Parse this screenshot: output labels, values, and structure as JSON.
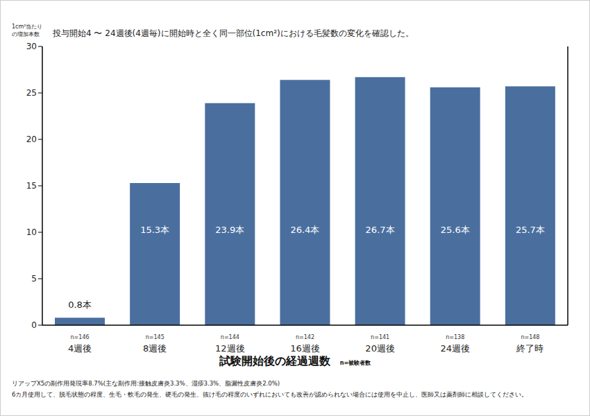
{
  "chart_data": {
    "type": "bar",
    "title": "投与開始4 〜 24週後(4週毎)に開始時と全く同一部位(1cm²)における毛髪数の変化を確認した。",
    "ylabel": [
      "1cm²当たり",
      "の増加本数"
    ],
    "xlabel": "試験開始後の経過週数",
    "xlabel_note": "n=被験者数",
    "categories": [
      "4週後",
      "8週後",
      "12週後",
      "16週後",
      "20週後",
      "24週後",
      "終了時"
    ],
    "n_labels": [
      "n=146",
      "n=145",
      "n=144",
      "n=142",
      "n=141",
      "n=138",
      "n=148"
    ],
    "values": [
      0.8,
      15.3,
      23.9,
      26.4,
      26.7,
      25.6,
      25.7
    ],
    "value_labels": [
      "0.8本",
      "15.3本",
      "23.9本",
      "26.4本",
      "26.7本",
      "25.6本",
      "25.7本"
    ],
    "data_labels": true,
    "color": "#4a6f9f",
    "ylim": [
      0,
      30
    ],
    "yticks": [
      0,
      5,
      10,
      15,
      20,
      25,
      30
    ],
    "grid": false,
    "notes": [
      "リアップX5の副作用発現率8.7%(主な副作用:接触皮膚炎3.3%、湿疹3.3%、脂漏性皮膚炎2.0%)",
      "6カ月使用して、脱毛状態の程度、生毛・軟毛の発生、硬毛の発生、抜け毛の程度のいずれにおいても改善が認められない場合には使用を中止し、医師又は薬剤師に相談してください。"
    ]
  }
}
